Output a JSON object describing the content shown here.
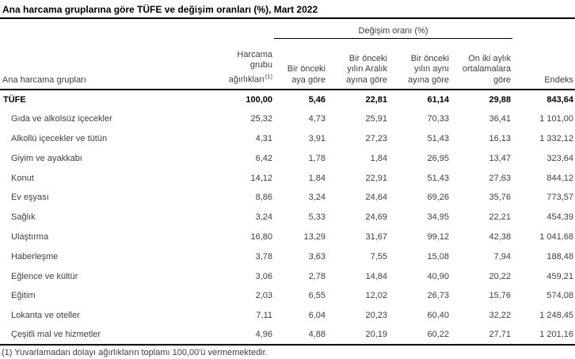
{
  "title": "Ana harcama gruplarına göre TÜFE ve değişim oranları (%), Mart 2022",
  "table": {
    "group_header": "Değişim oranı (%)",
    "columns": {
      "groups": "Ana harcama grupları",
      "weights": "Harcama\ngrubu\nağırlıkları",
      "weights_sup": "(1)",
      "monthly": "Bir önceki\naya göre",
      "since_december": "Bir önceki\nyılın Aralık\nayına göre",
      "yearly": "Bir önceki\nyılın aynı\nayına göre",
      "twelve_month_avg": "On iki aylık\nortalamalara\ngöre",
      "index": "Endeks"
    },
    "rows": [
      {
        "label": "TÜFE",
        "values": [
          "100,00",
          "5,46",
          "22,81",
          "61,14",
          "29,88",
          "843,64"
        ]
      },
      {
        "label": "Gıda ve alkolsüz içecekler",
        "values": [
          "25,32",
          "4,73",
          "25,91",
          "70,33",
          "36,41",
          "1 101,00"
        ]
      },
      {
        "label": "Alkollü içecekler ve tütün",
        "values": [
          "4,31",
          "3,91",
          "27,23",
          "51,43",
          "16,13",
          "1 332,12"
        ]
      },
      {
        "label": "Giyim ve ayakkabı",
        "values": [
          "6,42",
          "1,78",
          "1,84",
          "26,95",
          "13,47",
          "323,64"
        ]
      },
      {
        "label": "Konut",
        "values": [
          "14,12",
          "1,84",
          "22,91",
          "51,43",
          "27,63",
          "844,12"
        ]
      },
      {
        "label": "Ev eşyası",
        "values": [
          "8,86",
          "3,24",
          "24,64",
          "69,26",
          "35,76",
          "773,57"
        ]
      },
      {
        "label": "Sağlık",
        "values": [
          "3,24",
          "5,33",
          "24,69",
          "34,95",
          "22,21",
          "454,39"
        ]
      },
      {
        "label": "Ulaştırma",
        "values": [
          "16,80",
          "13,29",
          "31,67",
          "99,12",
          "42,38",
          "1 041,68"
        ]
      },
      {
        "label": "Haberleşme",
        "values": [
          "3,78",
          "3,63",
          "7,55",
          "15,08",
          "7,94",
          "188,48"
        ]
      },
      {
        "label": "Eğlence ve kültür",
        "values": [
          "3,06",
          "2,78",
          "14,84",
          "40,90",
          "20,22",
          "459,21"
        ]
      },
      {
        "label": "Eğitim",
        "values": [
          "2,03",
          "6,55",
          "12,02",
          "26,73",
          "15,76",
          "574,08"
        ]
      },
      {
        "label": "Lokanta ve oteller",
        "values": [
          "7,11",
          "6,04",
          "20,23",
          "60,40",
          "32,22",
          "1 248,45"
        ]
      },
      {
        "label": "Çeşitli mal ve hizmetler",
        "values": [
          "4,96",
          "4,88",
          "20,19",
          "60,22",
          "27,71",
          "1 201,16"
        ]
      }
    ]
  },
  "footnote": "(1) Yuvarlamadan dolayı ağırlıkların toplamı 100,00'ü vermemektedir.",
  "colors": {
    "text": "#404040",
    "emphasis": "#000000",
    "rule": "#000000"
  }
}
